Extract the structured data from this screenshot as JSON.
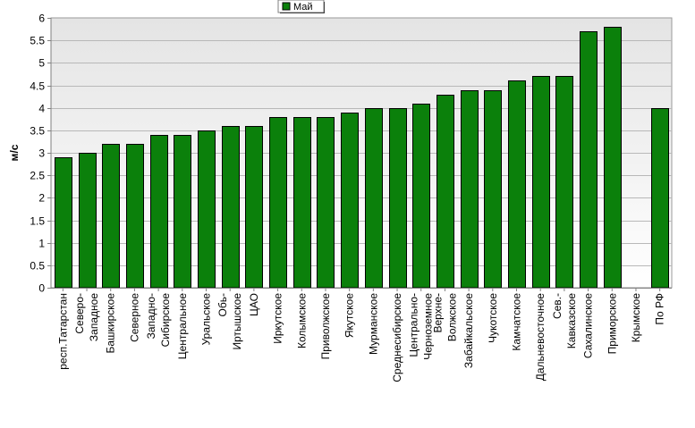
{
  "chart_data": {
    "type": "bar",
    "ylabel": "м/с",
    "ylim": [
      0,
      6
    ],
    "ytick_step": 0.5,
    "grid": true,
    "legend_position": "top-center",
    "series": [
      {
        "name": "Май",
        "color": "#0b800b",
        "values": [
          2.9,
          3.0,
          3.2,
          3.2,
          3.4,
          3.4,
          3.5,
          3.6,
          3.6,
          3.8,
          3.8,
          3.8,
          3.9,
          4.0,
          4.0,
          4.1,
          4.3,
          4.4,
          4.4,
          4.6,
          4.7,
          4.7,
          5.7,
          5.8,
          null,
          4.0
        ]
      }
    ],
    "categories": [
      "респ.Татарстан",
      "Северо-\nЗападное",
      "Башкирское",
      "Северное",
      "Западно-\nСибирское",
      "Центральное",
      "Уральское",
      "Обь-\nИртышское",
      "ЦАО",
      "Иркутское",
      "Колымское",
      "Приволжское",
      "Якутское",
      "Мурманское",
      "Среднесибирское",
      "Центрально-\nЧерноземное",
      "Верхне-\nВолжское",
      "Забайкальское",
      "Чукотское",
      "Камчатское",
      "Дальневосточное",
      "Сев.-\nКавказское",
      "Сахалинское",
      "Приморское",
      "Крымское",
      "По РФ"
    ]
  }
}
